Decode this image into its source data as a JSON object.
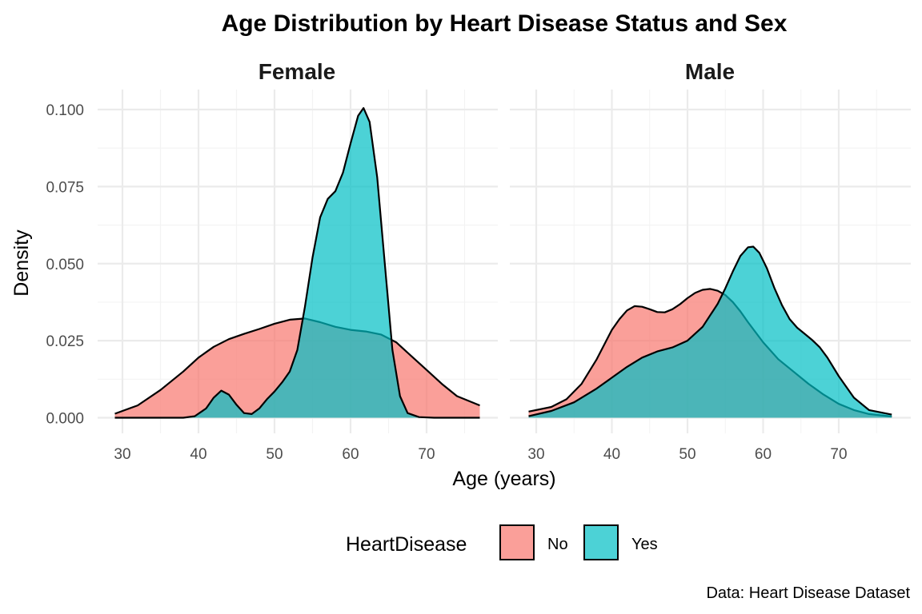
{
  "chart_data": {
    "type": "area",
    "title": "Age Distribution by Heart Disease Status and Sex",
    "xlabel": "Age (years)",
    "ylabel": "Density",
    "caption": "Data: Heart Disease Dataset",
    "xlim": [
      28,
      77
    ],
    "ylim": [
      0,
      0.105
    ],
    "x_ticks": [
      30,
      40,
      50,
      60,
      70
    ],
    "y_ticks": [
      0,
      0.025,
      0.05,
      0.075,
      0.1
    ],
    "y_tick_labels": [
      "0.000",
      "0.025",
      "0.050",
      "0.075",
      "0.100"
    ],
    "x_tick_labels": [
      "30",
      "40",
      "50",
      "60",
      "70"
    ],
    "legend": {
      "title": "HeartDisease",
      "position": "bottom",
      "entries": [
        {
          "name": "No",
          "color": "#F8766D"
        },
        {
          "name": "Yes",
          "color": "#00BFC4"
        }
      ]
    },
    "facets": [
      {
        "label": "Female",
        "series": [
          {
            "name": "No",
            "color": "#F8766D",
            "x": [
              29,
              32,
              35,
              38,
              40,
              42,
              44,
              46,
              48,
              50,
              52,
              54,
              56,
              58,
              60,
              62,
              64,
              66,
              68,
              70,
              72,
              74,
              77
            ],
            "y": [
              0.0013,
              0.004,
              0.009,
              0.015,
              0.0195,
              0.023,
              0.0255,
              0.0272,
              0.0288,
              0.0305,
              0.0318,
              0.0322,
              0.031,
              0.0295,
              0.0285,
              0.028,
              0.027,
              0.0245,
              0.02,
              0.0155,
              0.011,
              0.007,
              0.004
            ]
          },
          {
            "name": "Yes",
            "color": "#00BFC4",
            "x": [
              29,
              38,
              39.5,
              41,
              42,
              43,
              44,
              45,
              46,
              47,
              48,
              49,
              50,
              51,
              52,
              53,
              54,
              55,
              56,
              57,
              58,
              59,
              60,
              61,
              61.7,
              62.5,
              63.5,
              64.5,
              65.5,
              66.5,
              67.5,
              69,
              71,
              77
            ],
            "y": [
              0,
              0,
              0.0005,
              0.003,
              0.0065,
              0.0088,
              0.0075,
              0.0042,
              0.0015,
              0.0012,
              0.003,
              0.006,
              0.0085,
              0.0115,
              0.015,
              0.022,
              0.036,
              0.052,
              0.065,
              0.071,
              0.0735,
              0.0795,
              0.089,
              0.098,
              0.1005,
              0.096,
              0.078,
              0.05,
              0.022,
              0.007,
              0.0015,
              0.0002,
              0,
              0
            ]
          }
        ]
      },
      {
        "label": "Male",
        "series": [
          {
            "name": "No",
            "color": "#F8766D",
            "x": [
              29,
              32,
              34,
              36,
              38,
              40,
              41,
              42,
              43,
              44,
              45,
              46,
              47,
              48,
              49,
              50,
              51,
              52,
              53,
              54,
              55,
              56,
              57,
              58,
              60,
              62,
              64,
              66,
              68,
              70,
              72,
              74,
              77
            ],
            "y": [
              0.002,
              0.0035,
              0.006,
              0.011,
              0.019,
              0.0285,
              0.032,
              0.0348,
              0.0362,
              0.036,
              0.0352,
              0.0343,
              0.0342,
              0.0352,
              0.0368,
              0.0388,
              0.0405,
              0.0415,
              0.0418,
              0.0412,
              0.0398,
              0.0375,
              0.0345,
              0.031,
              0.0245,
              0.019,
              0.015,
              0.011,
              0.0075,
              0.0045,
              0.0025,
              0.0012,
              0.0004
            ]
          },
          {
            "name": "Yes",
            "color": "#00BFC4",
            "x": [
              29,
              32,
              35,
              38,
              40,
              42,
              44,
              46,
              48,
              50,
              52,
              54,
              55,
              56,
              57,
              58,
              58.7,
              59.5,
              60.5,
              61.5,
              62.5,
              63.5,
              64.5,
              65.5,
              66.5,
              67.5,
              68.5,
              70,
              72,
              74,
              77
            ],
            "y": [
              0.0005,
              0.0022,
              0.005,
              0.0095,
              0.013,
              0.0165,
              0.0195,
              0.0215,
              0.0228,
              0.025,
              0.0295,
              0.037,
              0.042,
              0.0475,
              0.0525,
              0.0553,
              0.0555,
              0.0535,
              0.0485,
              0.042,
              0.0365,
              0.032,
              0.0292,
              0.0272,
              0.0252,
              0.0228,
              0.0195,
              0.0135,
              0.0065,
              0.0025,
              0.001
            ]
          }
        ]
      }
    ]
  }
}
